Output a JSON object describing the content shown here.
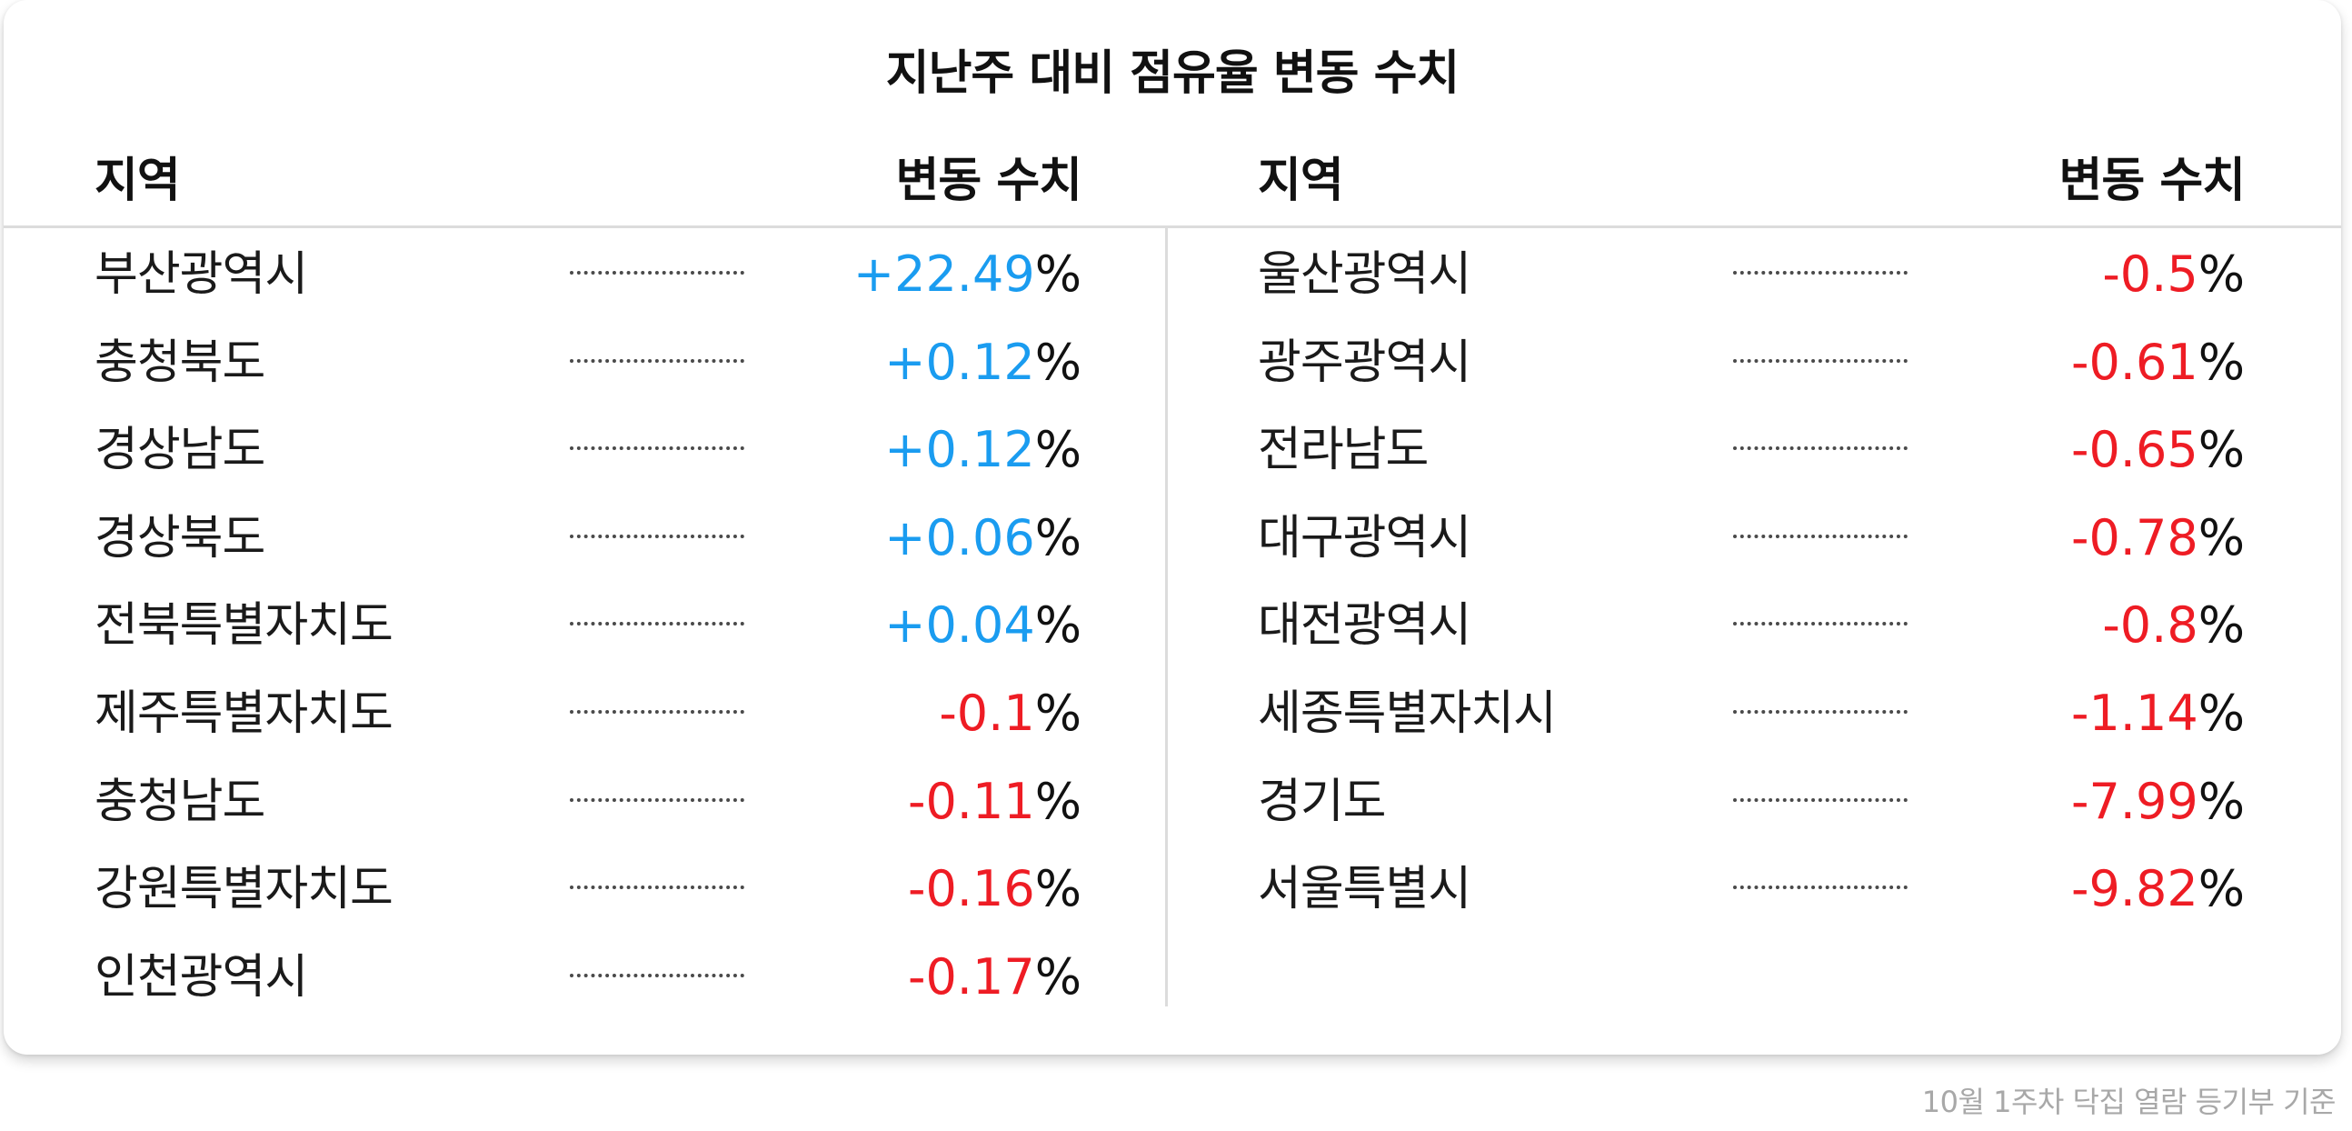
{
  "title": "지난주 대비 점유율 변동 수치",
  "headers": {
    "region": "지역",
    "change": "변동 수치"
  },
  "colors": {
    "positive": "#1a9cf0",
    "negative": "#ee1c24",
    "text": "#111111"
  },
  "left_rows": [
    {
      "region": "부산광역시",
      "value": "+22.49",
      "unit": "%",
      "sign": "positive"
    },
    {
      "region": "충청북도",
      "value": "+0.12",
      "unit": "%",
      "sign": "positive"
    },
    {
      "region": "경상남도",
      "value": "+0.12",
      "unit": "%",
      "sign": "positive"
    },
    {
      "region": "경상북도",
      "value": "+0.06",
      "unit": "%",
      "sign": "positive"
    },
    {
      "region": "전북특별자치도",
      "value": "+0.04",
      "unit": "%",
      "sign": "positive"
    },
    {
      "region": "제주특별자치도",
      "value": "-0.1",
      "unit": "%",
      "sign": "negative"
    },
    {
      "region": "충청남도",
      "value": "-0.11",
      "unit": "%",
      "sign": "negative"
    },
    {
      "region": "강원특별자치도",
      "value": "-0.16",
      "unit": "%",
      "sign": "negative"
    },
    {
      "region": "인천광역시",
      "value": "-0.17",
      "unit": "%",
      "sign": "negative"
    }
  ],
  "right_rows": [
    {
      "region": "울산광역시",
      "value": "-0.5",
      "unit": "%",
      "sign": "negative"
    },
    {
      "region": "광주광역시",
      "value": "-0.61",
      "unit": "%",
      "sign": "negative"
    },
    {
      "region": "전라남도",
      "value": "-0.65",
      "unit": "%",
      "sign": "negative"
    },
    {
      "region": "대구광역시",
      "value": "-0.78",
      "unit": "%",
      "sign": "negative"
    },
    {
      "region": "대전광역시",
      "value": "-0.8",
      "unit": "%",
      "sign": "negative"
    },
    {
      "region": "세종특별자치시",
      "value": "-1.14",
      "unit": "%",
      "sign": "negative"
    },
    {
      "region": "경기도",
      "value": "-7.99",
      "unit": "%",
      "sign": "negative"
    },
    {
      "region": "서울특별시",
      "value": "-9.82",
      "unit": "%",
      "sign": "negative"
    }
  ],
  "footnote": "10월 1주차 닥집 열람 등기부 기준"
}
